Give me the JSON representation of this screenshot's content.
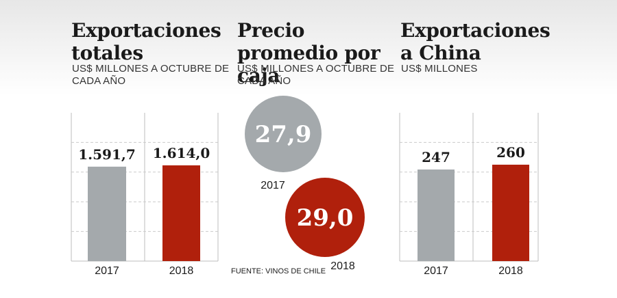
{
  "colors": {
    "grey": "#a4a9ac",
    "red": "#b0200c",
    "grid": "#c9c9c9",
    "frame": "#bdbdbd"
  },
  "panels": {
    "left": {
      "title": "Exportaciones totales",
      "subtitle": "US$ MILLONES A OCTUBRE DE CADA AÑO"
    },
    "middle": {
      "title": "Precio promedio por caja",
      "subtitle": "US$ MILLONES A OCTUBRE DE CADA AÑO"
    },
    "right": {
      "title": "Exportaciones a China",
      "subtitle": "US$ MILLONES"
    }
  },
  "source": "FUENTE: VINOS DE CHILE",
  "chart_data": [
    {
      "type": "bar",
      "title": "Exportaciones totales",
      "subtitle": "US$ MILLONES A OCTUBRE DE CADA AÑO",
      "categories": [
        "2017",
        "2018"
      ],
      "values": [
        1591.7,
        1614.0
      ],
      "value_labels": [
        "1.591,7",
        "1.614,0"
      ],
      "colors": [
        "#a4a9ac",
        "#b0200c"
      ],
      "grid": true
    },
    {
      "type": "bubble",
      "title": "Precio promedio por caja",
      "subtitle": "US$ MILLONES A OCTUBRE DE CADA AÑO",
      "categories": [
        "2017",
        "2018"
      ],
      "values": [
        27.9,
        29.0
      ],
      "value_labels": [
        "27,9",
        "29,0"
      ],
      "colors": [
        "#a4a9ac",
        "#b0200c"
      ]
    },
    {
      "type": "bar",
      "title": "Exportaciones a China",
      "subtitle": "US$ MILLONES",
      "categories": [
        "2017",
        "2018"
      ],
      "values": [
        247,
        260
      ],
      "value_labels": [
        "247",
        "260"
      ],
      "colors": [
        "#a4a9ac",
        "#b0200c"
      ],
      "grid": true
    }
  ]
}
